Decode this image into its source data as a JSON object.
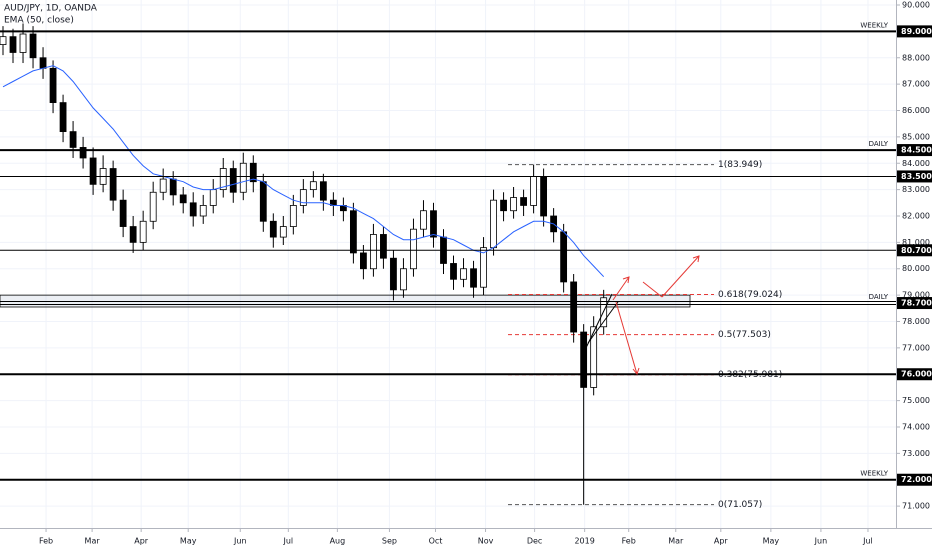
{
  "chart_data": {
    "type": "candlestick",
    "title": "AUD/JPY, 1D, OANDA",
    "x": [
      0,
      1,
      2,
      3,
      4,
      5,
      6,
      7,
      8,
      9,
      10,
      11,
      12,
      13,
      14,
      15,
      16,
      17,
      18,
      19,
      20,
      21,
      22,
      23,
      24,
      25,
      26,
      27,
      28,
      29,
      30,
      31,
      32,
      33,
      34,
      35,
      36,
      37,
      38,
      39,
      40,
      41,
      42,
      43,
      44,
      45,
      46,
      47,
      48,
      49,
      50,
      51,
      52,
      53,
      54,
      55,
      56,
      57,
      58,
      59,
      60
    ],
    "open": [
      88.5,
      88.8,
      88.2,
      88.9,
      88.0,
      87.6,
      86.3,
      85.2,
      84.6,
      84.2,
      83.2,
      83.8,
      82.6,
      81.6,
      81.0,
      81.8,
      82.9,
      83.4,
      82.8,
      82.5,
      82.0,
      82.4,
      83.0,
      83.8,
      82.9,
      84.0,
      83.3,
      81.8,
      81.2,
      81.6,
      82.4,
      83.0,
      83.3,
      82.6,
      82.4,
      82.2,
      80.6,
      80.0,
      81.3,
      80.4,
      79.2,
      80.0,
      81.5,
      82.2,
      81.2,
      80.2,
      79.6,
      80.0,
      79.3,
      80.8,
      82.6,
      82.2,
      82.7,
      82.4,
      83.5,
      82.0,
      81.4,
      79.5,
      77.6,
      75.5,
      77.8
    ],
    "high": [
      89.2,
      89.1,
      89.3,
      89.2,
      88.4,
      87.9,
      86.6,
      85.6,
      85.0,
      84.6,
      84.3,
      84.1,
      83.0,
      82.0,
      82.2,
      83.3,
      83.8,
      83.7,
      83.1,
      82.9,
      82.8,
      83.4,
      84.2,
      84.1,
      84.4,
      84.3,
      83.6,
      82.1,
      82.0,
      82.8,
      83.4,
      83.7,
      83.6,
      82.9,
      82.7,
      82.5,
      80.9,
      81.7,
      81.6,
      80.7,
      80.4,
      81.9,
      82.6,
      82.5,
      81.5,
      80.5,
      80.4,
      80.3,
      81.2,
      83.0,
      82.9,
      83.1,
      83.0,
      83.95,
      83.8,
      82.3,
      81.7,
      79.8,
      77.9,
      78.2,
      79.2
    ],
    "low": [
      88.1,
      87.8,
      87.8,
      87.6,
      87.2,
      85.9,
      84.8,
      84.2,
      83.8,
      82.8,
      82.9,
      82.2,
      81.2,
      80.6,
      80.7,
      81.5,
      82.6,
      82.4,
      82.1,
      81.6,
      81.7,
      82.1,
      82.7,
      82.5,
      82.6,
      82.9,
      81.4,
      80.8,
      80.9,
      81.3,
      82.1,
      82.7,
      82.2,
      82.0,
      81.8,
      80.2,
      79.6,
      79.7,
      80.0,
      78.8,
      78.9,
      79.7,
      81.2,
      80.8,
      79.8,
      79.2,
      79.3,
      78.9,
      79.0,
      80.5,
      81.8,
      81.9,
      82.0,
      82.1,
      81.6,
      81.0,
      79.1,
      77.2,
      71.05,
      75.2,
      77.5
    ],
    "close": [
      88.8,
      88.2,
      88.9,
      88.0,
      87.6,
      86.3,
      85.2,
      84.6,
      84.2,
      83.2,
      83.8,
      82.6,
      81.6,
      81.0,
      81.8,
      82.9,
      83.4,
      82.8,
      82.5,
      82.0,
      82.4,
      83.0,
      83.8,
      82.9,
      84.0,
      83.3,
      81.8,
      81.2,
      81.6,
      82.4,
      83.0,
      83.3,
      82.6,
      82.4,
      82.2,
      80.6,
      80.0,
      81.3,
      80.4,
      79.2,
      80.0,
      81.5,
      82.2,
      81.2,
      80.2,
      79.6,
      80.0,
      79.3,
      80.8,
      82.6,
      82.2,
      82.7,
      82.4,
      83.5,
      82.0,
      81.4,
      79.5,
      77.6,
      75.5,
      77.8,
      78.9
    ],
    "up_color": "#ffffff",
    "down_color": "#000000",
    "overlays": [
      {
        "name": "EMA (50, close)",
        "color": "#2962ff",
        "values": [
          86.9,
          87.1,
          87.3,
          87.5,
          87.6,
          87.7,
          87.5,
          87.1,
          86.6,
          86.1,
          85.7,
          85.3,
          84.8,
          84.3,
          83.9,
          83.6,
          83.5,
          83.4,
          83.3,
          83.1,
          83.0,
          83.0,
          83.1,
          83.2,
          83.3,
          83.4,
          83.3,
          83.0,
          82.8,
          82.6,
          82.5,
          82.5,
          82.5,
          82.4,
          82.4,
          82.3,
          82.1,
          81.9,
          81.6,
          81.3,
          81.1,
          81.1,
          81.2,
          81.3,
          81.2,
          81.1,
          80.9,
          80.7,
          80.6,
          80.8,
          81.1,
          81.4,
          81.6,
          81.8,
          81.8,
          81.7,
          81.4,
          81.0,
          80.5,
          80.1,
          79.7
        ]
      }
    ],
    "xlim": [
      -0.3,
      89.2
    ],
    "xticks": [
      {
        "value": 4.3,
        "label": "Feb"
      },
      {
        "value": 8.9,
        "label": "Mar"
      },
      {
        "value": 13.8,
        "label": "Apr"
      },
      {
        "value": 18.5,
        "label": "May"
      },
      {
        "value": 23.7,
        "label": "Jun"
      },
      {
        "value": 28.5,
        "label": "Jul"
      },
      {
        "value": 33.4,
        "label": "Aug"
      },
      {
        "value": 38.6,
        "label": "Sep"
      },
      {
        "value": 43.2,
        "label": "Oct"
      },
      {
        "value": 48.2,
        "label": "Nov"
      },
      {
        "value": 53.1,
        "label": "Dec"
      },
      {
        "value": 58.1,
        "label": "2019"
      },
      {
        "value": 62.5,
        "label": "Feb"
      },
      {
        "value": 67.2,
        "label": "Mar"
      },
      {
        "value": 71.7,
        "label": "Apr"
      },
      {
        "value": 76.7,
        "label": "May"
      },
      {
        "value": 81.7,
        "label": "Jun"
      },
      {
        "value": 86.4,
        "label": "Jul"
      }
    ],
    "ylim": [
      70.17,
      90.19
    ],
    "yticks": [
      {
        "value": 90,
        "label": "90.000"
      },
      {
        "value": 88,
        "label": "88.000"
      },
      {
        "value": 87,
        "label": "87.000"
      },
      {
        "value": 86,
        "label": "86.000"
      },
      {
        "value": 85,
        "label": "85.000"
      },
      {
        "value": 84,
        "label": "84.000"
      },
      {
        "value": 83,
        "label": "83.000"
      },
      {
        "value": 82,
        "label": "82.000"
      },
      {
        "value": 81,
        "label": "81.000"
      },
      {
        "value": 80,
        "label": "80.000"
      },
      {
        "value": 79,
        "label": "79.000"
      },
      {
        "value": 78,
        "label": "78.000"
      },
      {
        "value": 77,
        "label": "77.000"
      },
      {
        "value": 75,
        "label": "75.000"
      },
      {
        "value": 74,
        "label": "74.000"
      },
      {
        "value": 73,
        "label": "73.000"
      },
      {
        "value": 71,
        "label": "71.000"
      }
    ],
    "levels": [
      {
        "value": 89,
        "label": "89.000",
        "tag": "WEEKLY",
        "style": "thick"
      },
      {
        "value": 84.5,
        "label": "84.500",
        "tag": "DAILY",
        "style": "thick"
      },
      {
        "value": 83.5,
        "label": "83.500",
        "style": "thin"
      },
      {
        "value": 80.7,
        "label": "80.700",
        "style": "thin"
      },
      {
        "value": 78.7,
        "label": "78.700",
        "tag": "DAILY",
        "style": "double"
      },
      {
        "value": 76,
        "label": "76.000",
        "style": "thick"
      },
      {
        "value": 72,
        "label": "72.000",
        "tag": "WEEKLY",
        "style": "thick"
      }
    ],
    "zone": [
      78.55,
      79.0
    ],
    "fib": [
      {
        "value": 83.949,
        "label": "1(83.949)",
        "color": "#555555"
      },
      {
        "value": 79.024,
        "label": "0.618(79.024)",
        "color": "#e53935"
      },
      {
        "value": 77.503,
        "label": "0.5(77.503)",
        "color": "#e53935"
      },
      {
        "value": 75.981,
        "label": "0.382(75.981)",
        "color": "#e53935"
      },
      {
        "value": 71.057,
        "label": "0(71.057)",
        "color": "#555555"
      }
    ]
  }
}
